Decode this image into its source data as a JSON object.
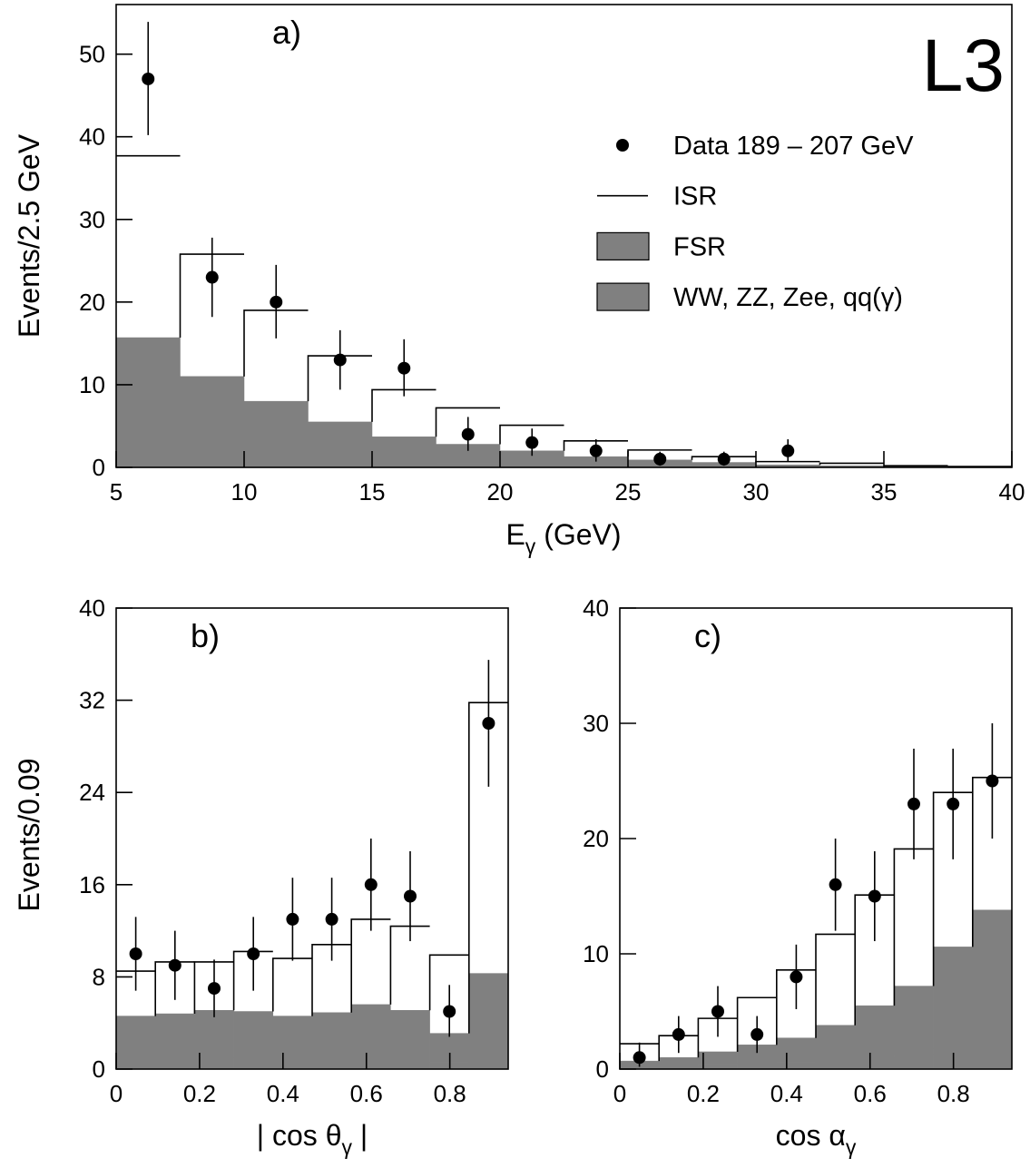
{
  "chart_data": [
    {
      "type": "histogram",
      "panel_label": "a)",
      "annotation": "L3",
      "xlabel": {
        "text": "E",
        "subscript": "γ",
        "suffix": " (GeV)"
      },
      "ylabel": "Events/2.5 GeV",
      "bins": [
        5,
        7.5,
        10,
        12.5,
        15,
        17.5,
        20,
        22.5,
        25,
        27.5,
        30,
        32.5,
        35,
        37.5,
        40
      ],
      "series": [
        {
          "name": "WW, ZZ, Zee, qq(γ)",
          "color": "#808080",
          "values": [
            2.0,
            1.5,
            1.0,
            0.8,
            0.6,
            0.5,
            0.4,
            0.3,
            0.2,
            0.1,
            0.1,
            0.05,
            0.05,
            0.02
          ]
        },
        {
          "name": "FSR",
          "color": "#808080",
          "values": [
            13.7,
            9.5,
            7.0,
            4.7,
            3.1,
            2.3,
            1.6,
            1.0,
            0.7,
            0.5,
            0.2,
            0.15,
            0.05,
            0.03
          ]
        },
        {
          "name": "ISR",
          "color": "none",
          "values": [
            22,
            14.8,
            11,
            8,
            5.7,
            4.4,
            3.1,
            1.9,
            1.2,
            0.7,
            0.4,
            0.3,
            0.1,
            0.05
          ]
        }
      ],
      "points": {
        "name": "Data 189 – 207 GeV",
        "color": "#000000",
        "x": [
          6.25,
          8.75,
          11.25,
          13.75,
          16.25,
          18.75,
          21.25,
          23.75,
          26.25,
          28.75,
          31.25
        ],
        "values": [
          47,
          23,
          20,
          13,
          12,
          4,
          3,
          2,
          1,
          1,
          2
        ],
        "error_minus": [
          6.8,
          4.8,
          4.4,
          3.6,
          3.4,
          2,
          1.6,
          1.3,
          0.8,
          0.8,
          1.3
        ],
        "error_plus": [
          6.9,
          4.8,
          4.5,
          3.6,
          3.5,
          2.1,
          1.7,
          1.4,
          0.9,
          0.9,
          1.4
        ]
      },
      "xlim": [
        5,
        40
      ],
      "ylim": [
        0,
        56
      ],
      "xticks": [
        5,
        10,
        15,
        20,
        25,
        30,
        35,
        40
      ],
      "yticks": [
        0,
        10,
        20,
        30,
        40,
        50
      ],
      "legend": "upper right"
    },
    {
      "type": "histogram",
      "panel_label": "b)",
      "xlabel": {
        "text": "| cos θ",
        "subscript": "γ",
        "suffix": " |"
      },
      "ylabel": "Events/0.09",
      "bins": [
        0,
        0.094,
        0.188,
        0.282,
        0.376,
        0.47,
        0.564,
        0.658,
        0.752,
        0.846,
        0.94
      ],
      "series": [
        {
          "color": "#808080",
          "values": [
            1.0,
            1.0,
            1.1,
            1.0,
            1.0,
            1.0,
            1.2,
            1.1,
            0.6,
            1.8
          ]
        },
        {
          "color": "#808080",
          "values": [
            3.6,
            3.8,
            4.0,
            4.0,
            3.6,
            3.9,
            4.4,
            4.0,
            2.5,
            6.5
          ]
        },
        {
          "color": "none",
          "values": [
            3.9,
            4.5,
            4.2,
            5.2,
            5.0,
            5.9,
            7.4,
            7.3,
            6.8,
            23.5
          ]
        }
      ],
      "points": {
        "color": "#000000",
        "x": [
          0.047,
          0.141,
          0.235,
          0.329,
          0.423,
          0.517,
          0.611,
          0.705,
          0.799,
          0.893
        ],
        "values": [
          10,
          9,
          7,
          10,
          13,
          13,
          16,
          15,
          5,
          30
        ],
        "error_minus": [
          3.2,
          3,
          2.5,
          3.2,
          3.6,
          3.6,
          4,
          3.9,
          2.2,
          5.5
        ],
        "error_plus": [
          3.2,
          3,
          2.5,
          3.2,
          3.6,
          3.6,
          4,
          3.9,
          2.3,
          5.5
        ]
      },
      "xlim": [
        0,
        0.94
      ],
      "ylim": [
        0,
        40
      ],
      "xticks": [
        0,
        0.2,
        0.4,
        0.6,
        0.8
      ],
      "yticks": [
        0,
        8,
        16,
        24,
        32,
        40
      ]
    },
    {
      "type": "histogram",
      "panel_label": "c)",
      "xlabel": {
        "text": "cos α",
        "subscript": "γ"
      },
      "bins": [
        0,
        0.094,
        0.188,
        0.282,
        0.376,
        0.47,
        0.564,
        0.658,
        0.752,
        0.846,
        0.94
      ],
      "series": [
        {
          "color": "#808080",
          "values": [
            0.2,
            0.3,
            0.4,
            0.5,
            0.6,
            0.8,
            1.0,
            1.3,
            1.8,
            2.3
          ]
        },
        {
          "color": "#808080",
          "values": [
            0.5,
            0.7,
            1.1,
            1.6,
            2.1,
            3.0,
            4.5,
            5.9,
            8.8,
            11.5
          ]
        },
        {
          "color": "none",
          "values": [
            1.5,
            1.9,
            2.9,
            4.1,
            5.9,
            7.9,
            9.6,
            11.9,
            13.4,
            11.5
          ]
        }
      ],
      "points": {
        "color": "#000000",
        "x": [
          0.047,
          0.141,
          0.235,
          0.329,
          0.423,
          0.517,
          0.611,
          0.705,
          0.799,
          0.893
        ],
        "values": [
          1,
          3,
          5,
          3,
          8,
          16,
          15,
          23,
          23,
          25
        ],
        "error_minus": [
          0.8,
          1.6,
          2.2,
          1.6,
          2.8,
          4,
          3.9,
          4.8,
          4.8,
          5
        ],
        "error_plus": [
          1.3,
          1.6,
          2.2,
          1.6,
          2.8,
          4,
          3.9,
          4.8,
          4.8,
          5
        ]
      },
      "xlim": [
        0,
        0.94
      ],
      "ylim": [
        0,
        40
      ],
      "xticks": [
        0,
        0.2,
        0.4,
        0.6,
        0.8
      ],
      "yticks": [
        0,
        10,
        20,
        30,
        40
      ]
    }
  ]
}
